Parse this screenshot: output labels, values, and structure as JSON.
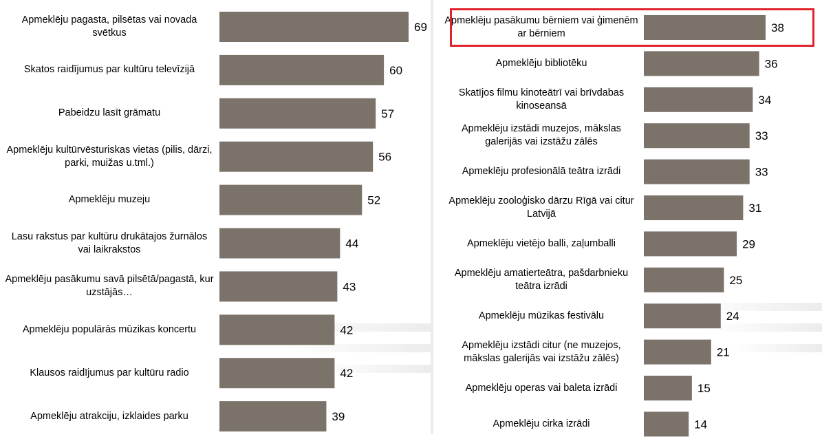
{
  "chart_data": [
    {
      "type": "bar",
      "orientation": "horizontal",
      "categories": [
        "Apmeklēju pagasta, pilsētas vai novada svētkus",
        "Skatos raidījumus par kultūru televīzijā",
        "Pabeidzu lasīt grāmatu",
        "Apmeklēju kultūrvēsturiskas vietas (pilis, dārzi, parki, muižas u.tml.)",
        "Apmeklēju muzeju",
        "Lasu rakstus par kultūru drukātajos žurnālos vai laikrakstos",
        "Apmeklēju pasākumu savā pilsētā/pagastā, kur uzstājās…",
        "Apmeklēju populārās mūzikas koncertu",
        "Klausos raidījumus par kultūru radio",
        "Apmeklēju atrakciju, izklaides parku"
      ],
      "values": [
        69,
        60,
        57,
        56,
        52,
        44,
        43,
        42,
        42,
        39
      ],
      "bar_color": "#7b7369",
      "xlim": [
        0,
        69
      ]
    },
    {
      "type": "bar",
      "orientation": "horizontal",
      "categories": [
        "Apmeklēju pasākumu bērniem vai ģimenēm ar bērniem",
        "Apmeklēju bibliotēku",
        "Skatījos filmu kinoteātrī vai brīvdabas kinoseansā",
        "Apmeklēju izstādi muzejos, mākslas galerijās vai izstāžu zālēs",
        "Apmeklēju profesionālā teātra izrādi",
        "Apmeklēju zooloģisko dārzu Rīgā vai citur Latvijā",
        "Apmeklēju vietējo balli, zaļumballi",
        "Apmeklēju amatierteātra, pašdarbnieku teātra izrādi",
        "Apmeklēju mūzikas festivālu",
        "Apmeklēju izstādi citur (ne muzejos, mākslas galerijās vai izstāžu zālēs)",
        "Apmeklēju operas vai baleta izrādi",
        "Apmeklēju cirka izrādi"
      ],
      "values": [
        38,
        36,
        34,
        33,
        33,
        31,
        29,
        25,
        24,
        21,
        15,
        14
      ],
      "bar_color": "#7b7369",
      "highlighted_category": "Apmeklēju pasākumu bērniem vai ģimenēm ar bērniem",
      "highlight_color": "#e0232b",
      "xlim": [
        0,
        38
      ]
    }
  ]
}
